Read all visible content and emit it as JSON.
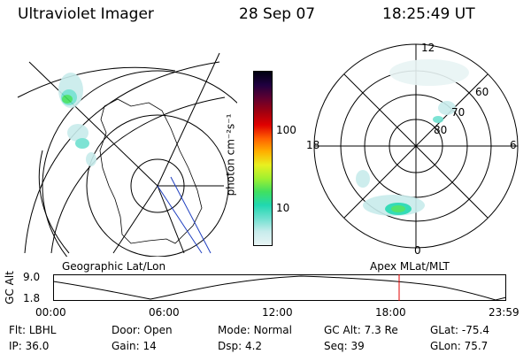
{
  "header": {
    "title": "Ultraviolet Imager",
    "date": "28 Sep 07",
    "time": "18:25:49 UT"
  },
  "colorbar": {
    "label": "photon cm⁻²s⁻¹",
    "ticks": [
      "100",
      "10"
    ],
    "colors": [
      "#e8f4f4",
      "#c8ecec",
      "#6fe0d0",
      "#20d8b0",
      "#40e060",
      "#a0f030",
      "#e8f020",
      "#ffb000",
      "#ff6000",
      "#e00000",
      "#a00010",
      "#600030",
      "#200040",
      "#000010"
    ]
  },
  "left_panel": {
    "label": "Geographic Lat/Lon"
  },
  "right_panel": {
    "label": "Apex MLat/MLT",
    "mlt_labels": {
      "top": "12",
      "left": "18",
      "right": "6",
      "bottom": "0"
    },
    "lat_labels": [
      "60",
      "70",
      "80"
    ]
  },
  "altitude_plot": {
    "ylabel": "GC Alt",
    "yticks": [
      "9.0",
      "1.8"
    ],
    "xticks": [
      "00:00",
      "06:00",
      "12:00",
      "18:00",
      "23:59"
    ],
    "marker_color": "#e00000"
  },
  "status": {
    "row1": [
      {
        "k": "Flt:",
        "v": "LBHL"
      },
      {
        "k": "Door:",
        "v": "Open"
      },
      {
        "k": "Mode:",
        "v": "Normal"
      },
      {
        "k": "GC Alt:",
        "v": "7.3 Re"
      },
      {
        "k": "GLat:",
        "v": "-75.4"
      }
    ],
    "row2": [
      {
        "k": "IP:",
        "v": "36.0"
      },
      {
        "k": "Gain:",
        "v": "14"
      },
      {
        "k": "Dsp:",
        "v": "4.2"
      },
      {
        "k": "Seq:",
        "v": "39"
      },
      {
        "k": "GLon:",
        "v": "75.7"
      }
    ]
  }
}
